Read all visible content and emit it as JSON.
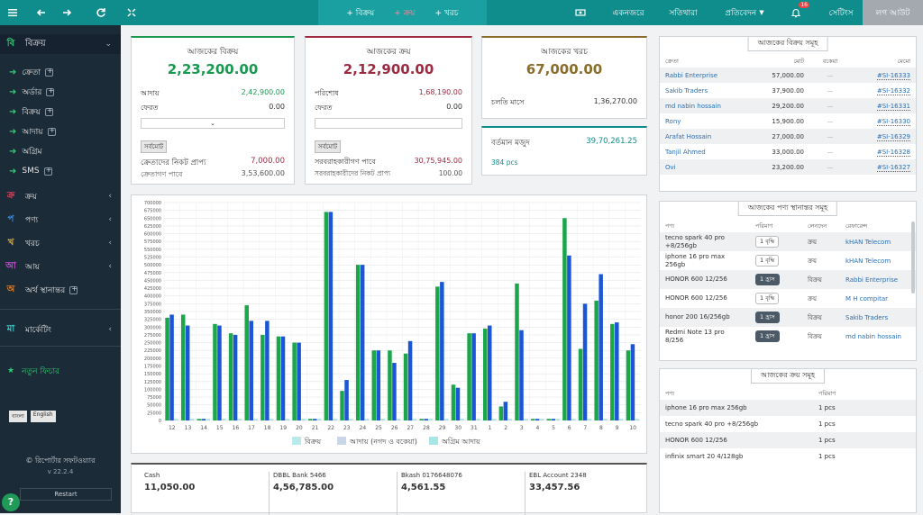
{
  "colors": {
    "accent": "#0f8d8d",
    "sale": "#1a9850",
    "purchase": "#9e2a40",
    "expense": "#8a6d2b",
    "series1": "#1ba64a",
    "series2": "#1a56d6"
  },
  "topbar": {
    "sale_label": "+ বিক্রয়",
    "purchase_label": "+ ক্রয়",
    "expense_label": "+ খরচ",
    "overview": "একনজরে",
    "ledger": "সতিথারা",
    "report": "প্রতিবেদন",
    "notif_count": "16",
    "settings": "সেটিংস",
    "logout": "লগ আউট"
  },
  "sidebar": {
    "sale_head": {
      "letter": "বি",
      "label": "বিক্রয়"
    },
    "sale_items": [
      "ক্রেতা",
      "অর্ডার",
      "বিক্রয়",
      "আদায়",
      "অগ্রিম",
      "SMS"
    ],
    "purchase": {
      "letter": "ক্র",
      "label": "ক্রয়"
    },
    "product": {
      "letter": "প",
      "label": "পণ্য"
    },
    "expense": {
      "letter": "খ",
      "label": "খরচ"
    },
    "income": {
      "letter": "আ",
      "label": "আয়"
    },
    "transfer": {
      "letter": "অ",
      "label": "অর্থ স্থানান্তর"
    },
    "marketing": {
      "letter": "মা",
      "label": "মার্কেটিং"
    },
    "new_feature": "নতুন ফিচার",
    "lang_bn": "বাংলা",
    "lang_en": "English",
    "brand": "© রিপোর্টার সফটওয়্যার",
    "version": "v 22.2.4",
    "restart": "Restart",
    "help": "?"
  },
  "sale_card": {
    "title": "আজকের বিক্রয়",
    "amount": "2,23,200.00",
    "collected_label": "আদায়",
    "collected": "2,42,900.00",
    "return_label": "ফেরত",
    "return": "0.00",
    "total_tag": "সর্বমোট",
    "due_label": "ক্রেতাদের নিকট প্রাপ্য",
    "due": "7,000.00",
    "advance_label": "ক্রেতাগণ পাবে",
    "advance": "3,53,600.00"
  },
  "purchase_card": {
    "title": "আজকের ক্রয়",
    "amount": "2,12,900.00",
    "paid_label": "পরিশোধ",
    "paid": "1,68,190.00",
    "return_label": "ফেরত",
    "return": "0.00",
    "total_tag": "সর্বমোট",
    "supplier_due_label": "সরবরাহকারীগণ পাবে",
    "supplier_due": "30,75,945.00",
    "supplier_adv_label": "সরবরাহকারীদের নিকট প্রাপ্য",
    "supplier_adv": "100.00"
  },
  "expense_card": {
    "title": "আজকের খরচ",
    "amount": "67,000.00",
    "month_label": "চলতি মাসে",
    "month": "1,36,270.00"
  },
  "stock_card": {
    "label": "বর্তমান মজুদ",
    "value": "39,70,261.25",
    "pcs": "384 pcs"
  },
  "chart_data": {
    "type": "bar",
    "categories": [
      "12",
      "13",
      "14",
      "15",
      "16",
      "17",
      "18",
      "19",
      "20",
      "21",
      "22",
      "23",
      "24",
      "25",
      "26",
      "27",
      "28",
      "29",
      "30",
      "31",
      "1",
      "2",
      "3",
      "4",
      "5",
      "6",
      "7",
      "8",
      "9",
      "10"
    ],
    "series": [
      {
        "name": "বিক্রয়",
        "values": [
          330000,
          340000,
          5000,
          310000,
          280000,
          370000,
          275000,
          270000,
          250000,
          5000,
          670000,
          95000,
          500000,
          225000,
          225000,
          215000,
          5000,
          430000,
          115000,
          280000,
          295000,
          45000,
          440000,
          5000,
          5000,
          650000,
          230000,
          385000,
          310000,
          225000
        ]
      },
      {
        "name": "আদায় (নগদ ও বকেয়া)",
        "values": [
          340000,
          305000,
          5000,
          305000,
          275000,
          320000,
          320000,
          270000,
          250000,
          5000,
          670000,
          130000,
          500000,
          225000,
          185000,
          255000,
          5000,
          445000,
          105000,
          280000,
          305000,
          60000,
          290000,
          5000,
          5000,
          530000,
          375000,
          470000,
          315000,
          245000
        ]
      },
      {
        "name": "অগ্রিম আদায়",
        "values": [
          5000,
          5000,
          5000,
          5000,
          5000,
          5000,
          5000,
          5000,
          5000,
          5000,
          5000,
          5000,
          5000,
          5000,
          5000,
          5000,
          5000,
          5000,
          5000,
          5000,
          5000,
          5000,
          5000,
          5000,
          5000,
          5000,
          5000,
          5000,
          5000,
          5000
        ]
      }
    ],
    "ylim": [
      0,
      700000
    ],
    "yticks": [
      "700000",
      "675000",
      "650000",
      "625000",
      "600000",
      "575000",
      "550000",
      "525000",
      "500000",
      "475000",
      "450000",
      "425000",
      "400000",
      "375000",
      "350000",
      "325000",
      "300000",
      "275000",
      "250000",
      "225000",
      "200000",
      "175000",
      "150000",
      "125000",
      "100000",
      "75000",
      "50000",
      "25000",
      "0"
    ],
    "grid": true,
    "legend": "bottom"
  },
  "balances": [
    {
      "name": "Cash",
      "value": "11,050.00"
    },
    {
      "name": "DBBL Bank 5466",
      "value": "4,56,785.00"
    },
    {
      "name": "Bkash 0176648076",
      "value": "4,561.55"
    },
    {
      "name": "EBL Account 2348",
      "value": "33,457.56"
    }
  ],
  "today_sales": {
    "title": "আজকের বিক্রয় সমূহ",
    "headers": [
      "ক্রেতা",
      "মোট",
      "বকেয়া",
      "মেমো"
    ],
    "rows": [
      {
        "customer": "Rabbi Enterprise",
        "total": "57,000.00",
        "due": "—",
        "memo": "#SI-16333"
      },
      {
        "customer": "Sakib Traders",
        "total": "37,900.00",
        "due": "—",
        "memo": "#SI-16332"
      },
      {
        "customer": "md nabin hossain",
        "total": "29,200.00",
        "due": "—",
        "memo": "#SI-16331"
      },
      {
        "customer": "Rony",
        "total": "15,900.00",
        "due": "—",
        "memo": "#SI-16330"
      },
      {
        "customer": "Arafat Hossain",
        "total": "27,000.00",
        "due": "—",
        "memo": "#SI-16329"
      },
      {
        "customer": "Tanjil Ahmed",
        "total": "33,000.00",
        "due": "—",
        "memo": "#SI-16328"
      },
      {
        "customer": "Ovi",
        "total": "23,200.00",
        "due": "—",
        "memo": "#SI-16327"
      }
    ]
  },
  "transfers": {
    "title": "আজকের পণ্য স্থানান্তর সমূহ",
    "headers": [
      "পণ্য",
      "পরিমাণ",
      "লেনদেন",
      "রেফারেন্স"
    ],
    "rows": [
      {
        "product": "tecno spark 40 pro +8/256gb",
        "qty": "1 বৃদ্ধি",
        "type": "ক্রয়",
        "ref": "kHAN Telecom",
        "dark": false
      },
      {
        "product": "iphone 16 pro max 256gb",
        "qty": "1 বৃদ্ধি",
        "type": "ক্রয়",
        "ref": "kHAN Telecom",
        "dark": false
      },
      {
        "product": "HONOR 600 12/256",
        "qty": "1 হ্রাস",
        "type": "বিক্রয়",
        "ref": "Rabbi Enterprise",
        "dark": true
      },
      {
        "product": "HONOR 600 12/256",
        "qty": "1 বৃদ্ধি",
        "type": "ক্রয়",
        "ref": "M H compitar",
        "dark": false
      },
      {
        "product": "honor 200 16/256gb",
        "qty": "1 হ্রাস",
        "type": "বিক্রয়",
        "ref": "Sakib Traders",
        "dark": true
      },
      {
        "product": "Redmi Note 13 pro 8/256",
        "qty": "1 হ্রাস",
        "type": "বিক্রয়",
        "ref": "md nabin hossain",
        "dark": true
      }
    ]
  },
  "today_purchases": {
    "title": "আজকের ক্রয় সমূহ",
    "headers": [
      "পণ্য",
      "পরিমাণ"
    ],
    "rows": [
      {
        "product": "iphone 16 pro max 256gb",
        "qty": "1 pcs"
      },
      {
        "product": "tecno spark 40 pro +8/256gb",
        "qty": "1 pcs"
      },
      {
        "product": "HONOR 600 12/256",
        "qty": "1 pcs"
      },
      {
        "product": "infinix smart 20 4/128gb",
        "qty": "1 pcs"
      }
    ]
  }
}
